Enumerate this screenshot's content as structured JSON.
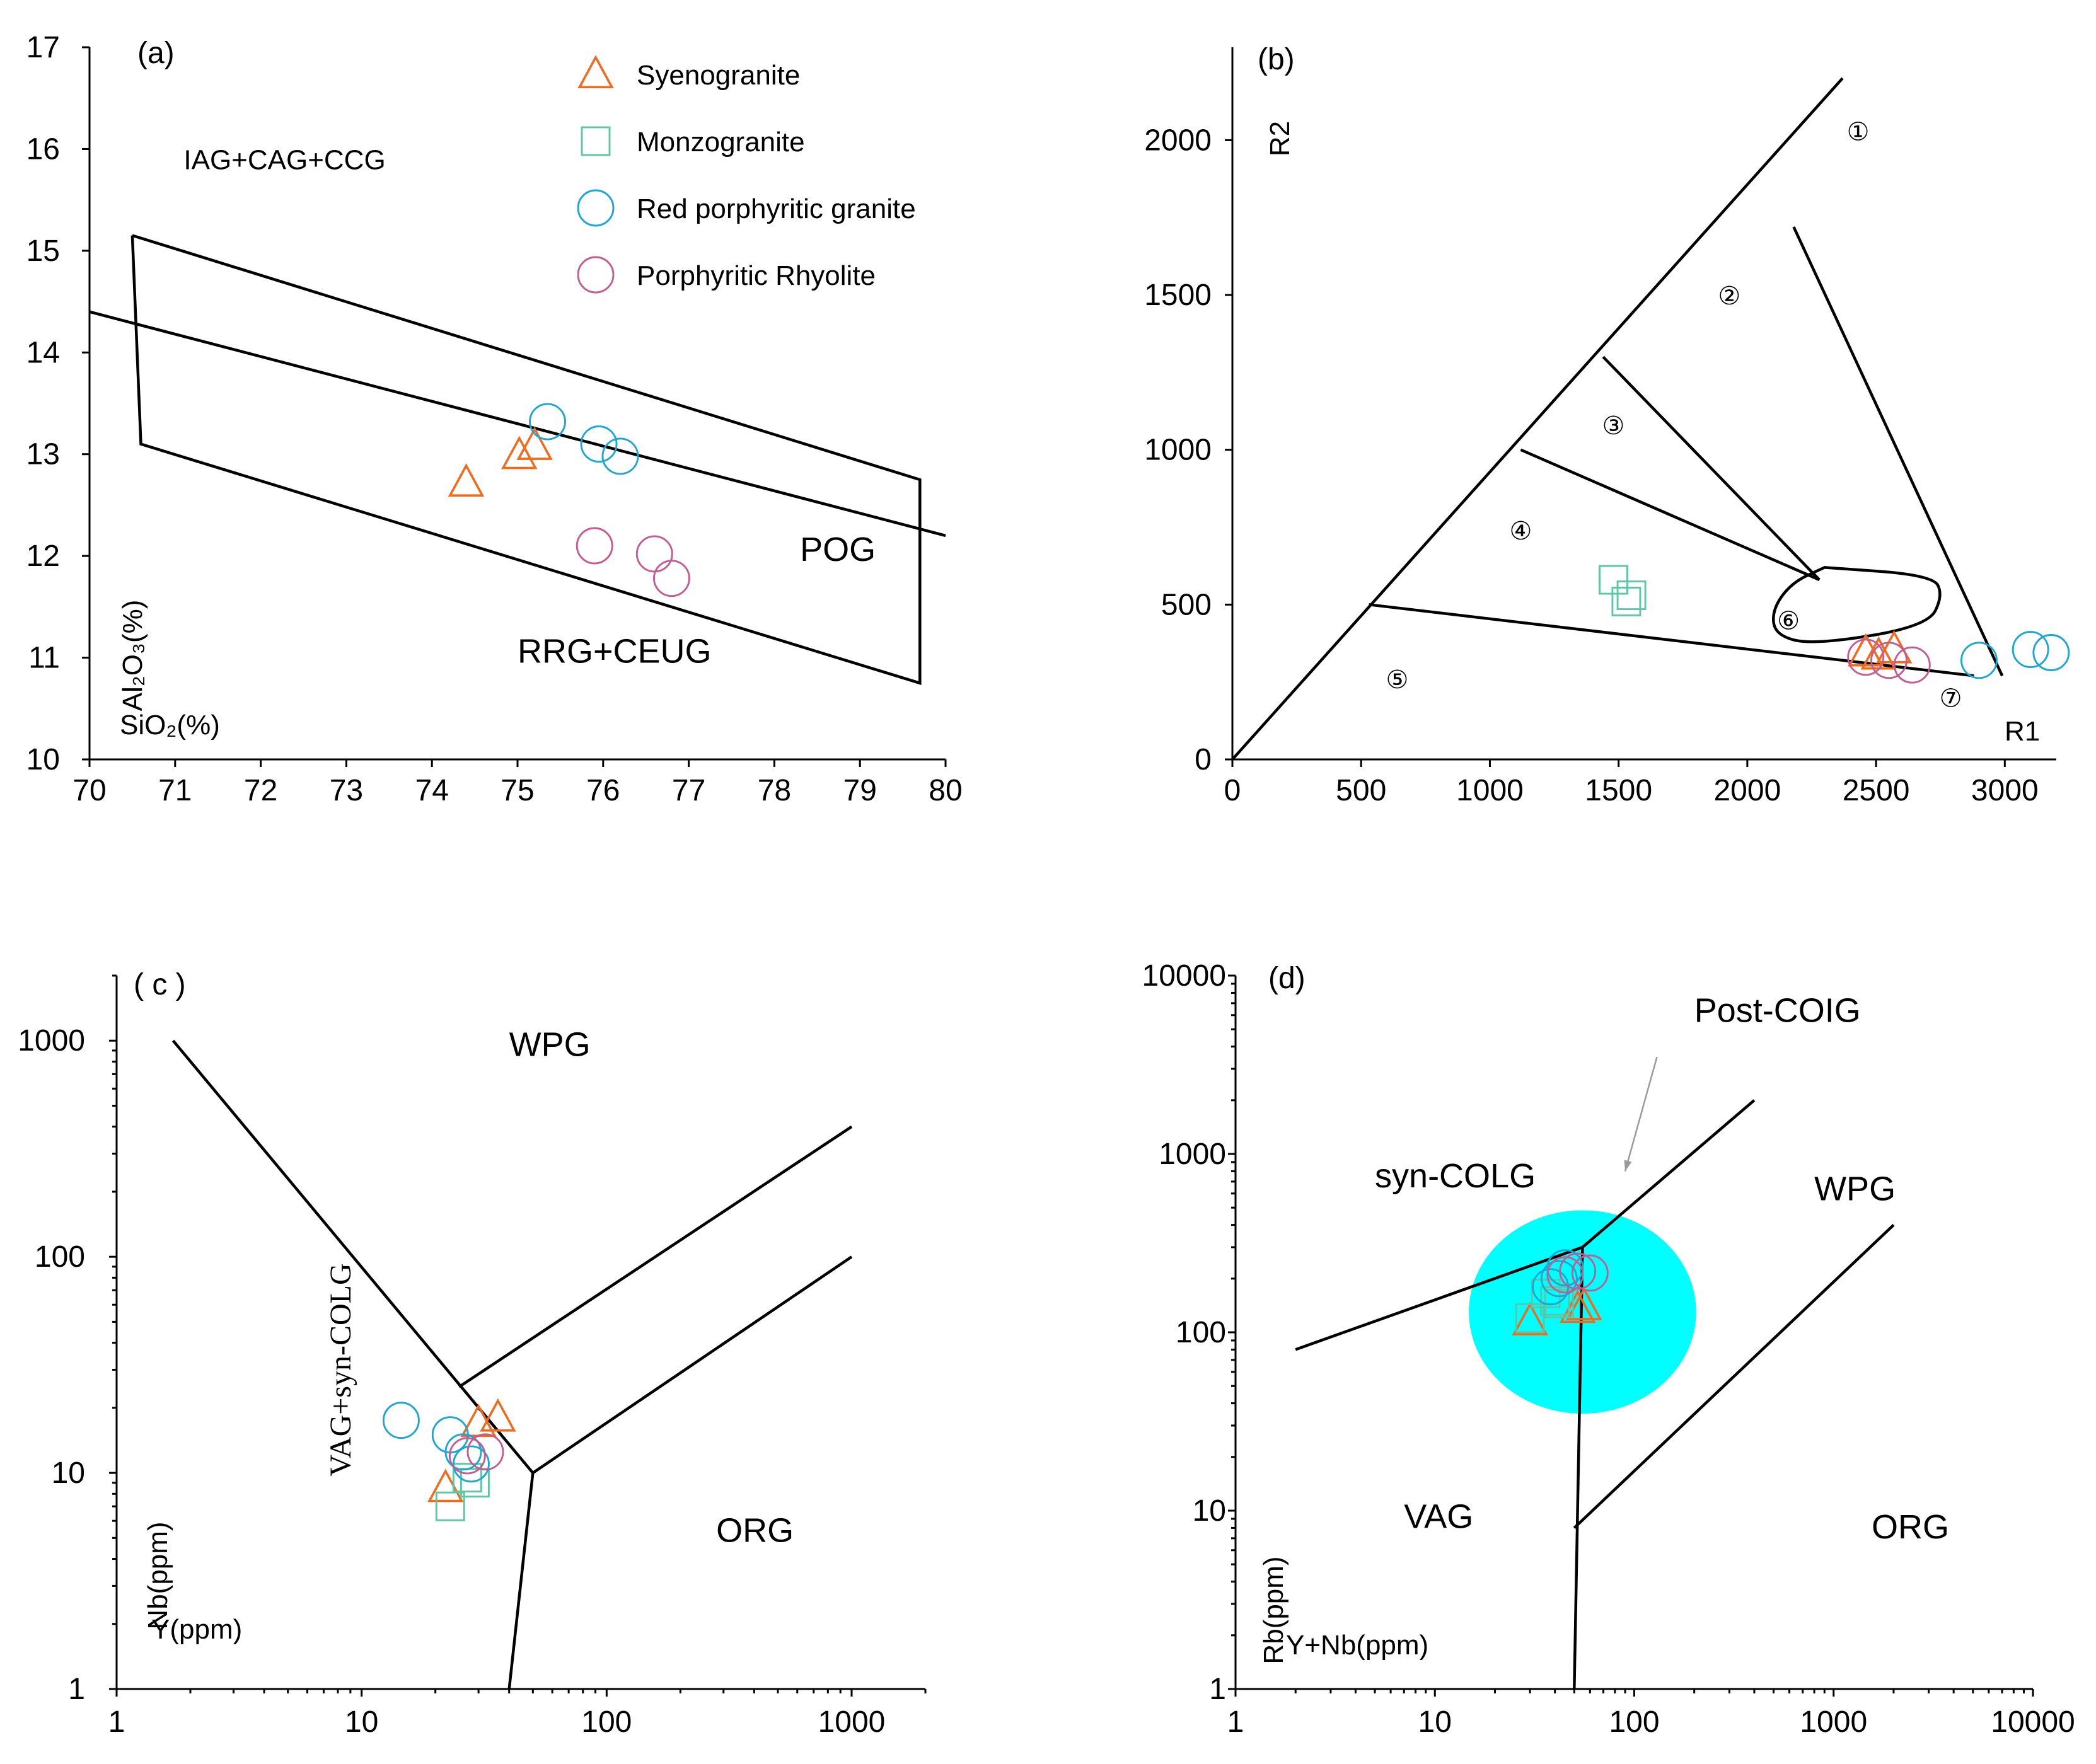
{
  "colors": {
    "syenogranite": "#f26b1d",
    "monzogranite": "#5cc6a5",
    "red_porphyritic": "#1aa7d3",
    "porphyritic_rhyolite": "#c45b91",
    "highlight": "#00ffff",
    "arrow": "#9a9a9a"
  },
  "legend": [
    {
      "key": "syenogranite",
      "label": "Syenogranite",
      "marker": "triangle"
    },
    {
      "key": "monzogranite",
      "label": "Monzogranite",
      "marker": "square"
    },
    {
      "key": "red_porphyritic",
      "label": "Red porphyritic granite",
      "marker": "circle"
    },
    {
      "key": "porphyritic_rhyolite",
      "label": "Porphyritic Rhyolite",
      "marker": "circle"
    }
  ],
  "chart_data": [
    {
      "id": "a",
      "type": "scatter",
      "label": "(a)",
      "xlabel": "SiO₂(%)",
      "ylabel": "Al₂O₃(%)",
      "xlim": [
        70,
        80
      ],
      "ylim": [
        10,
        17
      ],
      "xticks": [
        70,
        71,
        72,
        73,
        74,
        75,
        76,
        77,
        78,
        79,
        80
      ],
      "yticks": [
        10,
        11,
        12,
        13,
        14,
        15,
        16,
        17
      ],
      "fields": [
        {
          "text": "IAG+CAG+CCG",
          "x": 71.1,
          "y": 15.8
        },
        {
          "text": "POG",
          "x": 78.3,
          "y": 11.95
        },
        {
          "text": "RRG+CEUG",
          "x": 75.0,
          "y": 10.95
        }
      ],
      "boundaries": [
        [
          [
            70.5,
            15.15
          ],
          [
            79.7,
            12.75
          ],
          [
            79.7,
            10.75
          ],
          [
            70.6,
            13.1
          ],
          [
            70.5,
            15.15
          ]
        ],
        [
          [
            70.0,
            14.4
          ],
          [
            80.0,
            12.2
          ]
        ]
      ],
      "series": [
        {
          "name": "Syenogranite",
          "key": "syenogranite",
          "marker": "triangle",
          "points": [
            [
              74.4,
              12.72
            ],
            [
              75.02,
              12.99
            ],
            [
              75.2,
              13.08
            ]
          ]
        },
        {
          "name": "Red porphyritic granite",
          "key": "red_porphyritic",
          "marker": "circle",
          "points": [
            [
              75.35,
              13.32
            ],
            [
              75.95,
              13.1
            ],
            [
              76.2,
              12.98
            ]
          ]
        },
        {
          "name": "Porphyritic Rhyolite",
          "key": "porphyritic_rhyolite",
          "marker": "circle",
          "points": [
            [
              75.9,
              12.1
            ],
            [
              76.6,
              12.02
            ],
            [
              76.8,
              11.78
            ]
          ]
        }
      ]
    },
    {
      "id": "b",
      "type": "scatter",
      "label": "(b)",
      "xlabel": "R1",
      "ylabel": "R2",
      "xlim": [
        0,
        3200
      ],
      "ylim": [
        0,
        2300
      ],
      "xticks": [
        0,
        500,
        1000,
        1500,
        2000,
        2500,
        3000
      ],
      "yticks": [
        0,
        500,
        1000,
        1500,
        2000
      ],
      "fields": [
        {
          "text": "①",
          "x": 2430,
          "y": 2000
        },
        {
          "text": "②",
          "x": 1930,
          "y": 1470
        },
        {
          "text": "③",
          "x": 1480,
          "y": 1050
        },
        {
          "text": "④",
          "x": 1120,
          "y": 710
        },
        {
          "text": "⑤",
          "x": 640,
          "y": 230
        },
        {
          "text": "⑥",
          "x": 2160,
          "y": 420
        },
        {
          "text": "⑦",
          "x": 2790,
          "y": 170
        }
      ],
      "boundaries": [
        [
          [
            0,
            0
          ],
          [
            2370,
            2200
          ]
        ],
        [
          [
            530,
            500
          ],
          [
            2880,
            270
          ]
        ],
        [
          [
            1120,
            1000
          ],
          [
            2280,
            580
          ]
        ],
        [
          [
            1440,
            1300
          ],
          [
            2280,
            580
          ]
        ],
        [
          [
            2180,
            1720
          ],
          [
            2990,
            270
          ]
        ]
      ],
      "enclosed_field": [
        [
          2300,
          620
        ],
        [
          2720,
          595
        ],
        [
          2760,
          530
        ],
        [
          2700,
          430
        ],
        [
          2260,
          370
        ],
        [
          2110,
          400
        ],
        [
          2095,
          480
        ],
        [
          2170,
          570
        ],
        [
          2300,
          620
        ]
      ],
      "series": [
        {
          "name": "Syenogranite",
          "key": "syenogranite",
          "marker": "triangle",
          "points": [
            [
              2460,
              345
            ],
            [
              2510,
              335
            ],
            [
              2570,
              355
            ]
          ]
        },
        {
          "name": "Monzogranite",
          "key": "monzogranite",
          "marker": "square",
          "points": [
            [
              1480,
              580
            ],
            [
              1550,
              530
            ],
            [
              1530,
              510
            ]
          ]
        },
        {
          "name": "Red porphyritic granite",
          "key": "red_porphyritic",
          "marker": "circle",
          "points": [
            [
              2900,
              320
            ],
            [
              3100,
              355
            ],
            [
              3180,
              345
            ]
          ]
        },
        {
          "name": "Porphyritic Rhyolite",
          "key": "porphyritic_rhyolite",
          "marker": "circle",
          "points": [
            [
              2460,
              330
            ],
            [
              2550,
              320
            ],
            [
              2640,
              305
            ]
          ]
        }
      ]
    },
    {
      "id": "c",
      "type": "scatter",
      "label": "( c )",
      "xlabel": "Y(ppm)",
      "ylabel": "Nb(ppm)",
      "xscale": "log",
      "yscale": "log",
      "xlim": [
        1,
        2000
      ],
      "ylim": [
        1,
        2000
      ],
      "xticks": [
        1,
        10,
        100,
        1000
      ],
      "yticks": [
        1,
        10,
        100,
        1000
      ],
      "fields": [
        {
          "text": "WPG",
          "x": 40,
          "y": 850
        },
        {
          "text": "ORG",
          "x": 280,
          "y": 4.8
        },
        {
          "text": "VAG+syn-COLG",
          "x": 9,
          "y": 30,
          "rotate": true
        }
      ],
      "boundaries": [
        [
          [
            1.7,
            1000
          ],
          [
            50,
            10
          ]
        ],
        [
          [
            50,
            10
          ],
          [
            1000,
            100
          ]
        ],
        [
          [
            25,
            25
          ],
          [
            1000,
            400
          ]
        ],
        [
          [
            50,
            10
          ],
          [
            40,
            1
          ]
        ]
      ],
      "series": [
        {
          "name": "Syenogranite",
          "key": "syenogranite",
          "marker": "triangle",
          "points": [
            [
              22,
              8.5
            ],
            [
              30,
              17
            ],
            [
              36,
              18
            ]
          ]
        },
        {
          "name": "Monzogranite",
          "key": "monzogranite",
          "marker": "square",
          "points": [
            [
              23,
              7
            ],
            [
              27,
              9.5
            ],
            [
              29,
              9
            ]
          ]
        },
        {
          "name": "Red porphyritic granite",
          "key": "red_porphyritic",
          "marker": "circle",
          "points": [
            [
              14.5,
              17.5
            ],
            [
              23,
              15
            ],
            [
              26,
              12.5
            ],
            [
              28,
              11
            ]
          ]
        },
        {
          "name": "Porphyritic Rhyolite",
          "key": "porphyritic_rhyolite",
          "marker": "circle",
          "points": [
            [
              27,
              12
            ],
            [
              32,
              12.5
            ]
          ]
        }
      ]
    },
    {
      "id": "d",
      "type": "scatter",
      "label": "(d)",
      "xlabel": "Y+Nb(ppm)",
      "ylabel": "Rb(ppm)",
      "xscale": "log",
      "yscale": "log",
      "xlim": [
        1,
        10000
      ],
      "ylim": [
        1,
        10000
      ],
      "xticks": [
        1,
        10,
        100,
        1000,
        10000
      ],
      "yticks": [
        1,
        10,
        100,
        1000,
        10000
      ],
      "fields": [
        {
          "text": "Post-COIG",
          "x": 200,
          "y": 5500
        },
        {
          "text": "syn-COLG",
          "x": 5,
          "y": 650
        },
        {
          "text": "WPG",
          "x": 800,
          "y": 550
        },
        {
          "text": "VAG",
          "x": 7,
          "y": 8
        },
        {
          "text": "ORG",
          "x": 1550,
          "y": 7
        },
        {
          "text": "",
          "x": 0,
          "y": 0
        }
      ],
      "boundaries": [
        [
          [
            2,
            80
          ],
          [
            55,
            300
          ]
        ],
        [
          [
            55,
            300
          ],
          [
            400,
            2000
          ]
        ],
        [
          [
            55,
            300
          ],
          [
            50,
            1
          ]
        ],
        [
          [
            50,
            8
          ],
          [
            2000,
            400
          ]
        ]
      ],
      "highlight": {
        "x": 55,
        "y": 130,
        "rx_decades": 0.57,
        "ry_decades": 0.57
      },
      "arrow": {
        "from": [
          130,
          3500
        ],
        "to": [
          90,
          800
        ]
      },
      "series": [
        {
          "name": "Syenogranite",
          "key": "syenogranite",
          "marker": "triangle",
          "points": [
            [
              30,
              115
            ],
            [
              52,
              135
            ],
            [
              56,
              140
            ]
          ]
        },
        {
          "name": "Monzogranite",
          "key": "monzogranite",
          "marker": "square",
          "points": [
            [
              30,
              120
            ],
            [
              36,
              165
            ],
            [
              40,
              150
            ],
            [
              42,
              145
            ]
          ]
        },
        {
          "name": "Red porphyritic granite",
          "key": "red_porphyritic",
          "marker": "circle",
          "points": [
            [
              38,
              180
            ],
            [
              42,
              200
            ],
            [
              45,
              230
            ]
          ]
        },
        {
          "name": "Porphyritic Rhyolite",
          "key": "porphyritic_rhyolite",
          "marker": "circle",
          "points": [
            [
              45,
              210
            ],
            [
              52,
              220
            ],
            [
              60,
              215
            ]
          ]
        }
      ]
    }
  ]
}
